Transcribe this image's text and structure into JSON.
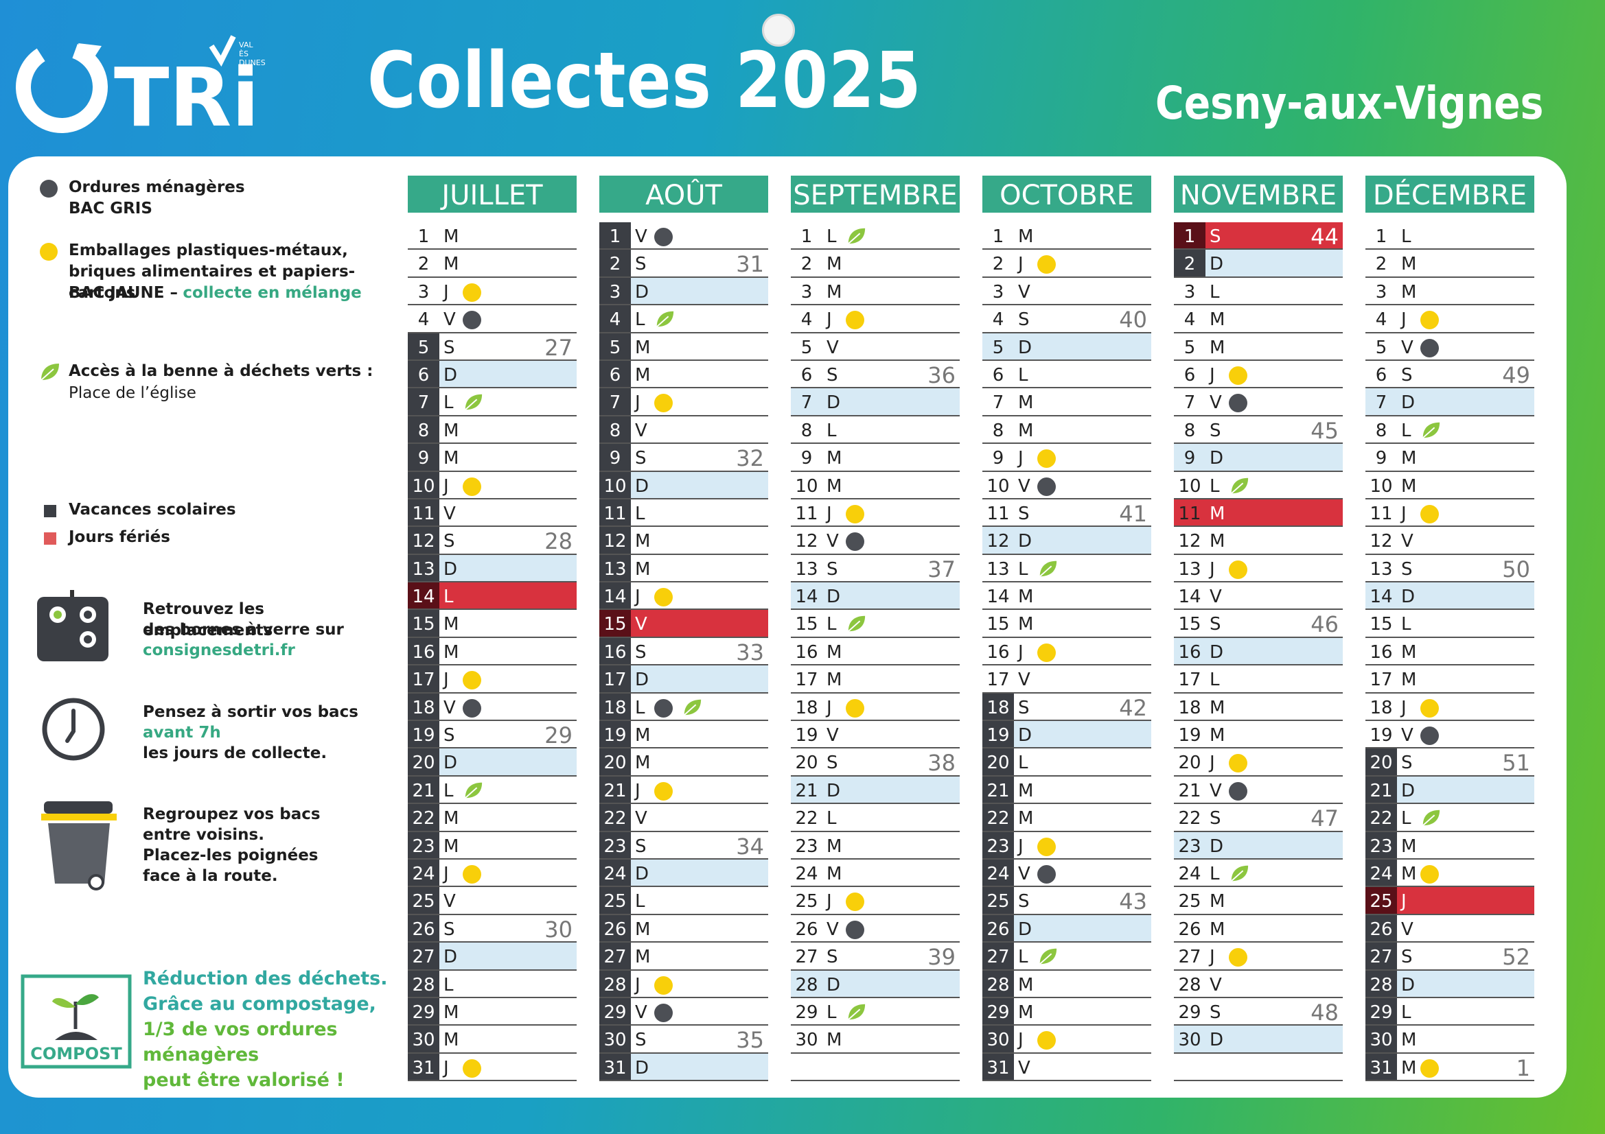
{
  "header": {
    "logo_text": "TRi",
    "logo_sub": [
      "VAL",
      "ÈS",
      "DUNES"
    ],
    "title": "Collectes 2025",
    "commune": "Cesny-aux-Vignes"
  },
  "colors": {
    "accent": "#36a989",
    "sunday": "#d7eaf5",
    "holiday": "#d8323e",
    "vacation": "#3b3e44",
    "yellow": "#f8cf0a",
    "gray": "#4c4f55",
    "leaf": "#8cc63f"
  },
  "legend": {
    "gray_title": "Ordures ménagères",
    "gray_sub": "BAC GRIS",
    "yellow_line1": "Emballages plastiques-métaux,",
    "yellow_line2": "briques alimentaires et papiers-cartons",
    "yellow_bac": "BAC JAUNE –",
    "yellow_mix": "collecte en mélange",
    "leaf_title": "Accès à la benne à déchets verts :",
    "leaf_place": "Place de l’église",
    "vacances": "Vacances scolaires",
    "feries": "Jours fériés",
    "verre_line1": "Retrouvez les emplacements",
    "verre_line2": "des bornes à verre sur",
    "verre_link": "consignesdetri.fr",
    "bacs_line1": "Pensez à sortir vos bacs",
    "bacs_line2": "avant 7h",
    "bacs_line3": "les jours de collecte.",
    "group_line1": "Regroupez vos bacs",
    "group_line2": "entre voisins.",
    "group_line3": "Placez-les poignées",
    "group_line4": "face à la route.",
    "compost_label": "COMPOST",
    "compost_line1": "Réduction des déchets.",
    "compost_line2": "Grâce au compostage,",
    "compost_line3": "1/3 de vos ordures ménagères",
    "compost_line4": "peut être valorisé !"
  },
  "months": [
    {
      "name": "JUILLET",
      "start": 2,
      "days": 31,
      "vac": [
        5,
        6,
        7,
        8,
        9,
        10,
        11,
        12,
        13,
        14,
        15,
        16,
        17,
        18,
        19,
        20,
        21,
        22,
        23,
        24,
        25,
        26,
        27,
        28,
        29,
        30,
        31
      ],
      "hol": [
        14
      ],
      "yellow": [
        3,
        10,
        17,
        24,
        31
      ],
      "gray": [
        4,
        18
      ],
      "leaf": [
        7,
        21
      ],
      "weeks": {
        "5": "27",
        "12": "28",
        "19": "29",
        "26": "30"
      }
    },
    {
      "name": "AOÛT",
      "start": 5,
      "days": 31,
      "vac": [
        1,
        2,
        3,
        4,
        5,
        6,
        7,
        8,
        9,
        10,
        11,
        12,
        13,
        14,
        15,
        16,
        17,
        18,
        19,
        20,
        21,
        22,
        23,
        24,
        25,
        26,
        27,
        28,
        29,
        30,
        31
      ],
      "hol": [
        15
      ],
      "yellow": [
        7,
        14,
        21,
        28
      ],
      "gray": [
        1,
        18,
        29
      ],
      "leaf": [
        4,
        18
      ],
      "weeks": {
        "2": "31",
        "9": "32",
        "16": "33",
        "23": "34",
        "30": "35"
      }
    },
    {
      "name": "SEPTEMBRE",
      "start": 1,
      "days": 30,
      "vac": [],
      "hol": [],
      "yellow": [
        4,
        11,
        18,
        25
      ],
      "gray": [
        12,
        26
      ],
      "leaf": [
        1,
        15,
        29
      ],
      "weeks": {
        "6": "36",
        "13": "37",
        "20": "38",
        "27": "39"
      }
    },
    {
      "name": "OCTOBRE",
      "start": 3,
      "days": 31,
      "vac": [
        18,
        19,
        20,
        21,
        22,
        23,
        24,
        25,
        26,
        27,
        28,
        29,
        30,
        31
      ],
      "hol": [],
      "yellow": [
        2,
        9,
        16,
        23,
        30
      ],
      "gray": [
        10,
        24
      ],
      "leaf": [
        13,
        27
      ],
      "weeks": {
        "4": "40",
        "11": "41",
        "18": "42",
        "25": "43"
      }
    },
    {
      "name": "NOVEMBRE",
      "start": 6,
      "days": 30,
      "vac": [
        1,
        2
      ],
      "hol": [
        1,
        11
      ],
      "yellow": [
        6,
        13,
        20,
        27
      ],
      "gray": [
        7,
        21
      ],
      "leaf": [
        10,
        24
      ],
      "weeks": {
        "1": "44",
        "8": "45",
        "15": "46",
        "22": "47",
        "29": "48"
      }
    },
    {
      "name": "DÉCEMBRE",
      "start": 1,
      "days": 31,
      "vac": [
        20,
        21,
        22,
        23,
        24,
        25,
        26,
        27,
        28,
        29,
        30,
        31
      ],
      "hol": [
        25
      ],
      "yellow": [
        4,
        11,
        18,
        24,
        31
      ],
      "gray": [
        5,
        19
      ],
      "leaf": [
        8,
        22
      ],
      "weeks": {
        "6": "49",
        "13": "50",
        "20": "51",
        "27": "52",
        "31": "1"
      }
    }
  ],
  "weekday_letters": [
    "L",
    "M",
    "M",
    "J",
    "V",
    "S",
    "D"
  ]
}
